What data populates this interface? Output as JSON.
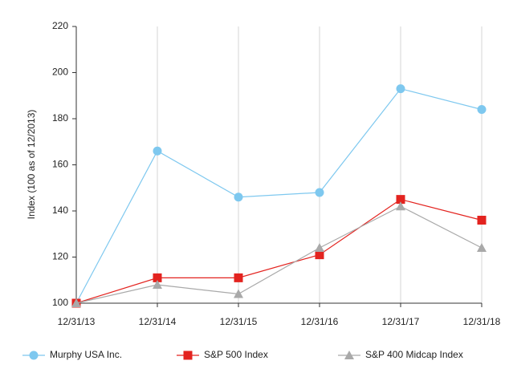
{
  "chart_data": {
    "type": "line",
    "y_label": "Index (100 as of 12/2013)",
    "categories": [
      "12/31/13",
      "12/31/14",
      "12/31/15",
      "12/31/16",
      "12/31/17",
      "12/31/18"
    ],
    "series": [
      {
        "name": "Murphy USA Inc.",
        "color": "#7ec8ef",
        "marker": "circle",
        "values": [
          100,
          166,
          146,
          148,
          193,
          184
        ]
      },
      {
        "name": "S&P 500 Index",
        "color": "#e3231f",
        "marker": "square",
        "values": [
          100,
          111,
          111,
          121,
          145,
          136
        ]
      },
      {
        "name": "S&P 400 Midcap Index",
        "color": "#a9a9a9",
        "marker": "triangle",
        "values": [
          100,
          108,
          104,
          124,
          142,
          124
        ]
      }
    ],
    "ylim": [
      100,
      220
    ],
    "yticks": [
      100,
      120,
      140,
      160,
      180,
      200,
      220
    ],
    "grid": "x"
  }
}
